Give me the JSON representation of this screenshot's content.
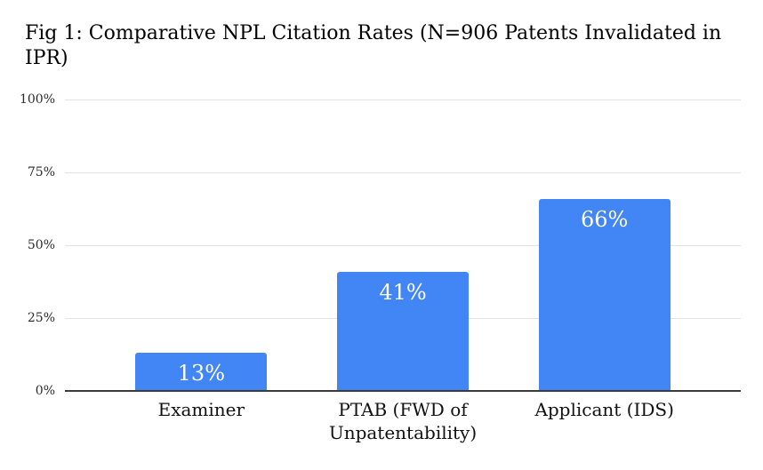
{
  "title": {
    "line1": "Fig 1: Comparative NPL Citation Rates (N=906 Patents Invalidated in",
    "line2": "IPR)"
  },
  "chart_data": {
    "type": "bar",
    "title": "Fig 1: Comparative NPL Citation Rates (N=906 Patents Invalidated in IPR)",
    "categories": [
      "Examiner",
      "PTAB (FWD of Unpatentability)",
      "Applicant (IDS)"
    ],
    "values": [
      13,
      41,
      66
    ],
    "value_labels": [
      "13%",
      "41%",
      "66%"
    ],
    "yticks": [
      "0%",
      "25%",
      "50%",
      "75%",
      "100%"
    ],
    "ylim": [
      0,
      100
    ],
    "xlabel": "",
    "ylabel": "",
    "grid": true,
    "legend_position": "none",
    "bar_color": "#4285f4",
    "value_label_color": "#ffffff",
    "gridline_color": "#e3e3e3",
    "axis_line_color": "#3c3c3c"
  }
}
